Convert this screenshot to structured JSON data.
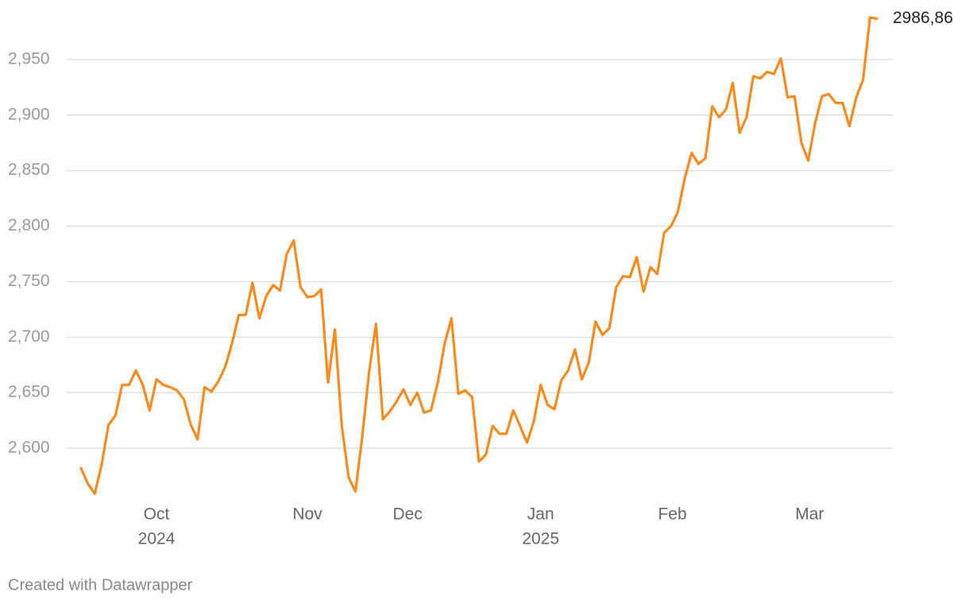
{
  "chart_data": {
    "type": "line",
    "color": "#f98a1e",
    "grid": true,
    "values": [
      2582,
      2568,
      2559,
      2585,
      2621,
      2629,
      2657,
      2657,
      2670,
      2657,
      2634,
      2662,
      2657,
      2655,
      2652,
      2644,
      2621,
      2608,
      2655,
      2651,
      2660,
      2673,
      2694,
      2720,
      2720,
      2749,
      2717,
      2737,
      2747,
      2742,
      2775,
      2787,
      2745,
      2736,
      2737,
      2743,
      2659,
      2707,
      2621,
      2574,
      2561,
      2611,
      2669,
      2712,
      2626,
      2633,
      2642,
      2653,
      2639,
      2650,
      2632,
      2634,
      2659,
      2694,
      2717,
      2649,
      2652,
      2646,
      2588,
      2594,
      2620,
      2613,
      2613,
      2634,
      2620,
      2605,
      2624,
      2657,
      2639,
      2635,
      2661,
      2670,
      2689,
      2662,
      2677,
      2714,
      2702,
      2708,
      2745,
      2755,
      2754,
      2772,
      2741,
      2763,
      2757,
      2794,
      2800,
      2813,
      2843,
      2866,
      2856,
      2861,
      2908,
      2898,
      2905,
      2929,
      2884,
      2898,
      2935,
      2933,
      2939,
      2937,
      2951,
      2916,
      2917,
      2875,
      2859,
      2893,
      2917,
      2919,
      2911,
      2911,
      2890,
      2916,
      2932,
      2988,
      2986.86
    ],
    "value_labels": [
      null,
      null,
      null,
      null,
      null,
      null,
      null,
      null,
      null,
      null,
      null,
      null,
      null,
      null,
      null,
      null,
      null,
      null,
      null,
      null,
      null,
      null,
      null,
      null,
      null,
      null,
      null,
      null,
      null,
      null,
      null,
      null,
      null,
      null,
      null,
      null,
      null,
      null,
      null,
      null,
      null,
      null,
      null,
      null,
      null,
      null,
      null,
      null,
      null,
      null,
      null,
      null,
      null,
      null,
      null,
      null,
      null,
      null,
      null,
      null,
      null,
      null,
      null,
      null,
      null,
      null,
      null,
      null,
      null,
      null,
      null,
      null,
      null,
      null,
      null,
      null,
      null,
      null,
      null,
      null,
      null,
      null,
      null,
      null,
      null,
      null,
      null,
      null,
      null,
      null,
      null,
      null,
      null,
      null,
      null,
      null,
      null,
      null,
      null,
      null,
      null,
      null,
      null,
      null,
      null,
      null,
      null,
      null,
      null,
      null,
      null,
      null,
      null,
      null,
      null,
      null,
      "2986,86"
    ],
    "xlim": [
      0,
      116
    ],
    "xticks": [
      {
        "value": 11,
        "label": "Oct",
        "sublabel": "2024"
      },
      {
        "value": 33,
        "label": "Nov"
      },
      {
        "value": 47.6,
        "label": "Dec"
      },
      {
        "value": 67,
        "label": "Jan",
        "sublabel": "2025"
      },
      {
        "value": 86.2,
        "label": "Feb"
      },
      {
        "value": 106.2,
        "label": "Mar"
      }
    ],
    "ylim": [
      2555,
      2990
    ],
    "yticks": [
      {
        "value": 2600,
        "label": "2,600"
      },
      {
        "value": 2650,
        "label": "2,650"
      },
      {
        "value": 2700,
        "label": "2,700"
      },
      {
        "value": 2750,
        "label": "2,750"
      },
      {
        "value": 2800,
        "label": "2,800"
      },
      {
        "value": 2850,
        "label": "2,850"
      },
      {
        "value": 2900,
        "label": "2,900"
      },
      {
        "value": 2950,
        "label": "2,950"
      }
    ],
    "footer": "Created with Datawrapper"
  }
}
